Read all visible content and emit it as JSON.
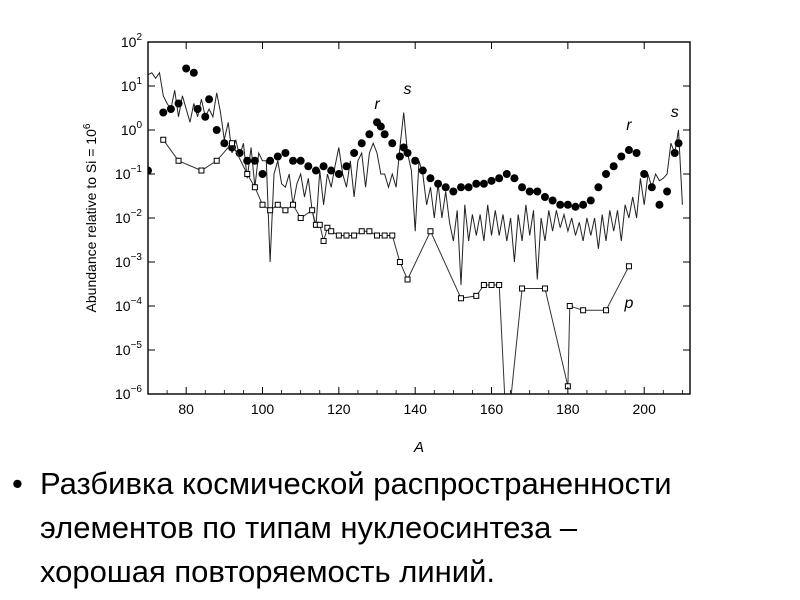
{
  "chart_data": {
    "type": "line",
    "xlabel": "A",
    "ylabel": "Abundance relative to Si = 10^6",
    "ylabel_parts": {
      "text": "Abundance relative to Si",
      "sep": " = ",
      "base": "10",
      "exp": "6"
    },
    "xlim": [
      70,
      212
    ],
    "ylim": [
      1e-06,
      100
    ],
    "y_scale": "log",
    "x_ticks": [
      80,
      100,
      120,
      140,
      160,
      180,
      200
    ],
    "y_ticks": [
      {
        "value": 100,
        "base": "10",
        "exp": "2"
      },
      {
        "value": 10,
        "base": "10",
        "exp": "1"
      },
      {
        "value": 1,
        "base": "10",
        "exp": "0"
      },
      {
        "value": 0.1,
        "base": "10",
        "exp": "−1"
      },
      {
        "value": 0.01,
        "base": "10",
        "exp": "−2"
      },
      {
        "value": 0.001,
        "base": "10",
        "exp": "−3"
      },
      {
        "value": 0.0001,
        "base": "10",
        "exp": "−4"
      },
      {
        "value": 1e-05,
        "base": "10",
        "exp": "−5"
      },
      {
        "value": 1e-06,
        "base": "10",
        "exp": "−6"
      }
    ],
    "annotations": [
      {
        "text": "r",
        "x": 130,
        "y": 3.0
      },
      {
        "text": "s",
        "x": 138,
        "y": 6.5
      },
      {
        "text": "r",
        "x": 196,
        "y": 1.0
      },
      {
        "text": "s",
        "x": 208,
        "y": 2.0
      },
      {
        "text": "p",
        "x": 196,
        "y": 9e-05
      }
    ],
    "series": [
      {
        "marker": "line",
        "points": [
          [
            70,
            18
          ],
          [
            71,
            20
          ],
          [
            72,
            15
          ],
          [
            73,
            20
          ],
          [
            74,
            6
          ],
          [
            75,
            4
          ],
          [
            76,
            3
          ],
          [
            77,
            8
          ],
          [
            78,
            2
          ],
          [
            79,
            6
          ],
          [
            80,
            3
          ],
          [
            81,
            1.5
          ],
          [
            82,
            4
          ],
          [
            83,
            2
          ],
          [
            84,
            5
          ],
          [
            85,
            2
          ],
          [
            86,
            3
          ],
          [
            87,
            2
          ],
          [
            88,
            7
          ],
          [
            89,
            2.5
          ],
          [
            90,
            0.6
          ],
          [
            91,
            1.5
          ],
          [
            92,
            0.3
          ],
          [
            93,
            0.6
          ],
          [
            94,
            0.25
          ],
          [
            95,
            0.5
          ],
          [
            96,
            0.08
          ],
          [
            97,
            0.4
          ],
          [
            98,
            0.05
          ],
          [
            99,
            0.3
          ],
          [
            100,
            0.2
          ],
          [
            101,
            0.2
          ],
          [
            102,
            0.001
          ],
          [
            103,
            0.1
          ],
          [
            104,
            0.2
          ],
          [
            105,
            0.06
          ],
          [
            106,
            0.05
          ],
          [
            107,
            0.1
          ],
          [
            108,
            0.02
          ],
          [
            109,
            0.06
          ],
          [
            110,
            0.1
          ],
          [
            111,
            0.03
          ],
          [
            112,
            0.08
          ],
          [
            113,
            0.015
          ],
          [
            114,
            0.006
          ],
          [
            115,
            0.12
          ],
          [
            116,
            0.02
          ],
          [
            117,
            0.1
          ],
          [
            118,
            0.05
          ],
          [
            119,
            0.15
          ],
          [
            120,
            0.4
          ],
          [
            121,
            0.1
          ],
          [
            122,
            0.05
          ],
          [
            123,
            0.2
          ],
          [
            124,
            0.03
          ],
          [
            125,
            0.2
          ],
          [
            126,
            0.3
          ],
          [
            127,
            0.05
          ],
          [
            128,
            0.3
          ],
          [
            129,
            0.5
          ],
          [
            130,
            0.3
          ],
          [
            131,
            0.1
          ],
          [
            132,
            0.1
          ],
          [
            133,
            0.05
          ],
          [
            134,
            0.1
          ],
          [
            135,
            0.05
          ],
          [
            136,
            0.4
          ],
          [
            137,
            2.5
          ],
          [
            138,
            0.3
          ],
          [
            139,
            0.12
          ],
          [
            140,
            0.005
          ],
          [
            141,
            0.2
          ],
          [
            142,
            0.1
          ],
          [
            143,
            0.02
          ],
          [
            144,
            0.05
          ],
          [
            145,
            0.01
          ],
          [
            146,
            0.06
          ],
          [
            147,
            0.01
          ],
          [
            148,
            0.04
          ],
          [
            149,
            0.008
          ],
          [
            150,
            0.003
          ],
          [
            151,
            0.015
          ],
          [
            152,
            0.0003
          ],
          [
            153,
            0.02
          ],
          [
            154,
            0.003
          ],
          [
            155,
            0.012
          ],
          [
            156,
            0.004
          ],
          [
            157,
            0.012
          ],
          [
            158,
            0.003
          ],
          [
            159,
            0.02
          ],
          [
            160,
            0.004
          ],
          [
            161,
            0.015
          ],
          [
            162,
            0.004
          ],
          [
            163,
            0.012
          ],
          [
            164,
            0.003
          ],
          [
            165,
            0.01
          ],
          [
            166,
            0.001
          ],
          [
            167,
            0.012
          ],
          [
            168,
            0.003
          ],
          [
            169,
            0.02
          ],
          [
            170,
            0.004
          ],
          [
            171,
            0.015
          ],
          [
            172,
            0.0004
          ],
          [
            173,
            0.01
          ],
          [
            174,
            0.003
          ],
          [
            175,
            0.015
          ],
          [
            176,
            0.005
          ],
          [
            177,
            0.015
          ],
          [
            178,
            0.006
          ],
          [
            179,
            0.012
          ],
          [
            180,
            0.005
          ],
          [
            181,
            0.01
          ],
          [
            182,
            0.004
          ],
          [
            183,
            0.008
          ],
          [
            184,
            0.003
          ],
          [
            185,
            0.01
          ],
          [
            186,
            0.004
          ],
          [
            187,
            0.01
          ],
          [
            188,
            0.002
          ],
          [
            189,
            0.012
          ],
          [
            190,
            0.003
          ],
          [
            191,
            0.015
          ],
          [
            192,
            0.005
          ],
          [
            193,
            0.015
          ],
          [
            194,
            0.003
          ],
          [
            195,
            0.02
          ],
          [
            196,
            0.01
          ],
          [
            197,
            0.03
          ],
          [
            198,
            0.01
          ],
          [
            199,
            0.08
          ],
          [
            200,
            0.02
          ],
          [
            201,
            0.1
          ],
          [
            202,
            0.05
          ],
          [
            203,
            0.1
          ],
          [
            204,
            0.07
          ],
          [
            205,
            0.08
          ],
          [
            206,
            0.1
          ],
          [
            207,
            0.5
          ],
          [
            208,
            0.3
          ],
          [
            209,
            1.0
          ],
          [
            210,
            0.02
          ]
        ]
      },
      {
        "marker": "filled-circle",
        "points": [
          [
            70,
            0.12
          ],
          [
            74,
            2.5
          ],
          [
            76,
            3
          ],
          [
            78,
            4
          ],
          [
            80,
            25
          ],
          [
            82,
            20
          ],
          [
            83,
            3
          ],
          [
            85,
            2
          ],
          [
            86,
            5
          ],
          [
            88,
            1
          ],
          [
            90,
            0.5
          ],
          [
            92,
            0.4
          ],
          [
            94,
            0.3
          ],
          [
            96,
            0.2
          ],
          [
            98,
            0.2
          ],
          [
            100,
            0.1
          ],
          [
            102,
            0.2
          ],
          [
            104,
            0.25
          ],
          [
            106,
            0.3
          ],
          [
            108,
            0.2
          ],
          [
            110,
            0.2
          ],
          [
            112,
            0.15
          ],
          [
            114,
            0.12
          ],
          [
            116,
            0.15
          ],
          [
            118,
            0.12
          ],
          [
            120,
            0.1
          ],
          [
            122,
            0.15
          ],
          [
            124,
            0.3
          ],
          [
            126,
            0.5
          ],
          [
            128,
            0.8
          ],
          [
            130,
            1.5
          ],
          [
            131,
            1.2
          ],
          [
            132,
            0.8
          ],
          [
            134,
            0.5
          ],
          [
            136,
            0.25
          ],
          [
            137,
            0.4
          ],
          [
            138,
            0.3
          ],
          [
            140,
            0.2
          ],
          [
            142,
            0.12
          ],
          [
            144,
            0.08
          ],
          [
            146,
            0.06
          ],
          [
            148,
            0.05
          ],
          [
            150,
            0.04
          ],
          [
            152,
            0.05
          ],
          [
            154,
            0.05
          ],
          [
            156,
            0.06
          ],
          [
            158,
            0.06
          ],
          [
            160,
            0.07
          ],
          [
            162,
            0.08
          ],
          [
            164,
            0.1
          ],
          [
            166,
            0.08
          ],
          [
            168,
            0.05
          ],
          [
            170,
            0.04
          ],
          [
            172,
            0.04
          ],
          [
            174,
            0.03
          ],
          [
            176,
            0.025
          ],
          [
            178,
            0.02
          ],
          [
            180,
            0.02
          ],
          [
            182,
            0.018
          ],
          [
            184,
            0.02
          ],
          [
            186,
            0.025
          ],
          [
            188,
            0.05
          ],
          [
            190,
            0.1
          ],
          [
            192,
            0.15
          ],
          [
            194,
            0.25
          ],
          [
            196,
            0.35
          ],
          [
            198,
            0.3
          ],
          [
            200,
            0.1
          ],
          [
            202,
            0.05
          ],
          [
            204,
            0.02
          ],
          [
            206,
            0.04
          ],
          [
            208,
            0.3
          ],
          [
            209,
            0.5
          ]
        ]
      },
      {
        "marker": "open-square",
        "points": [
          [
            74,
            0.6
          ],
          [
            78,
            0.2
          ],
          [
            84,
            0.12
          ],
          [
            88,
            0.2
          ],
          [
            92,
            0.5
          ],
          [
            96,
            0.1
          ],
          [
            98,
            0.05
          ],
          [
            100,
            0.02
          ],
          [
            102,
            0.015
          ],
          [
            104,
            0.02
          ],
          [
            106,
            0.015
          ],
          [
            108,
            0.02
          ],
          [
            110,
            0.01
          ],
          [
            113,
            0.015
          ],
          [
            114,
            0.007
          ],
          [
            115,
            0.007
          ],
          [
            116,
            0.003
          ],
          [
            117,
            0.006
          ],
          [
            118,
            0.005
          ],
          [
            120,
            0.004
          ],
          [
            122,
            0.004
          ],
          [
            124,
            0.004
          ],
          [
            126,
            0.005
          ],
          [
            128,
            0.005
          ],
          [
            130,
            0.004
          ],
          [
            132,
            0.004
          ],
          [
            134,
            0.004
          ],
          [
            136,
            0.001
          ],
          [
            138,
            0.0004
          ],
          [
            144,
            0.005
          ],
          [
            152,
            0.00015
          ],
          [
            156,
            0.00017
          ],
          [
            158,
            0.0003
          ],
          [
            160,
            0.0003
          ],
          [
            162,
            0.0003
          ],
          [
            164,
            1e-07
          ],
          [
            168,
            0.00025
          ],
          [
            174,
            0.00025
          ],
          [
            180,
            1.5e-06
          ],
          [
            180.5,
            0.0001
          ],
          [
            184,
            8e-05
          ],
          [
            190,
            8e-05
          ],
          [
            196,
            0.0008
          ]
        ]
      }
    ]
  },
  "caption": {
    "bullet": "•",
    "lines": [
      "Разбивка космической распространенности",
      "элементов по типам нуклеосинтеза –",
      "хорошая повторяемость линий."
    ]
  }
}
